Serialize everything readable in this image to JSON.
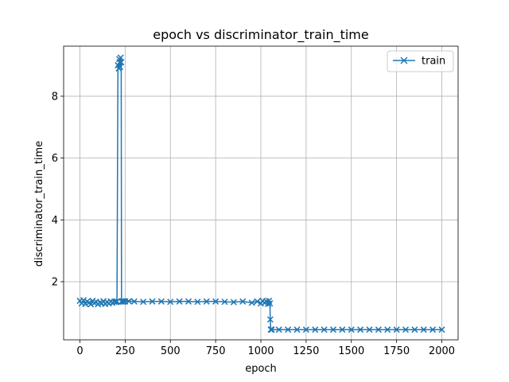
{
  "chart_data": {
    "type": "line",
    "title": "epoch vs discriminator_train_time",
    "xlabel": "epoch",
    "ylabel": "discriminator_train_time",
    "xlim": [
      -90,
      2090
    ],
    "ylim": [
      0.12,
      9.62
    ],
    "xticks": [
      0,
      250,
      500,
      750,
      1000,
      1250,
      1500,
      1750,
      2000
    ],
    "yticks": [
      2,
      4,
      6,
      8
    ],
    "grid": true,
    "legend_position": "top-right",
    "series": [
      {
        "name": "train",
        "color": "#1f77b4",
        "marker": "x",
        "x": [
          0,
          10,
          20,
          30,
          40,
          50,
          60,
          70,
          80,
          90,
          100,
          110,
          120,
          130,
          140,
          150,
          160,
          170,
          180,
          190,
          200,
          205,
          210,
          215,
          218,
          220,
          222,
          225,
          228,
          230,
          235,
          240,
          250,
          270,
          300,
          350,
          400,
          450,
          500,
          550,
          600,
          650,
          700,
          750,
          800,
          850,
          900,
          950,
          980,
          1000,
          1010,
          1020,
          1030,
          1040,
          1045,
          1050,
          1052,
          1055,
          1060,
          1100,
          1150,
          1200,
          1250,
          1300,
          1350,
          1400,
          1450,
          1500,
          1550,
          1600,
          1650,
          1700,
          1750,
          1800,
          1850,
          1900,
          1950,
          2000
        ],
        "y": [
          1.38,
          1.3,
          1.4,
          1.28,
          1.36,
          1.32,
          1.27,
          1.38,
          1.31,
          1.35,
          1.27,
          1.33,
          1.3,
          1.37,
          1.28,
          1.34,
          1.3,
          1.36,
          1.32,
          1.35,
          1.34,
          1.36,
          9.0,
          8.9,
          9.2,
          9.1,
          8.95,
          9.25,
          9.1,
          1.36,
          1.37,
          1.35,
          1.36,
          1.37,
          1.36,
          1.35,
          1.36,
          1.36,
          1.35,
          1.36,
          1.36,
          1.35,
          1.36,
          1.36,
          1.35,
          1.34,
          1.36,
          1.32,
          1.36,
          1.3,
          1.38,
          1.32,
          1.36,
          1.28,
          1.38,
          1.3,
          0.78,
          0.45,
          0.45,
          0.45,
          0.45,
          0.45,
          0.45,
          0.45,
          0.45,
          0.45,
          0.45,
          0.45,
          0.45,
          0.45,
          0.45,
          0.45,
          0.45,
          0.45,
          0.45,
          0.45,
          0.45,
          0.45
        ]
      }
    ]
  }
}
